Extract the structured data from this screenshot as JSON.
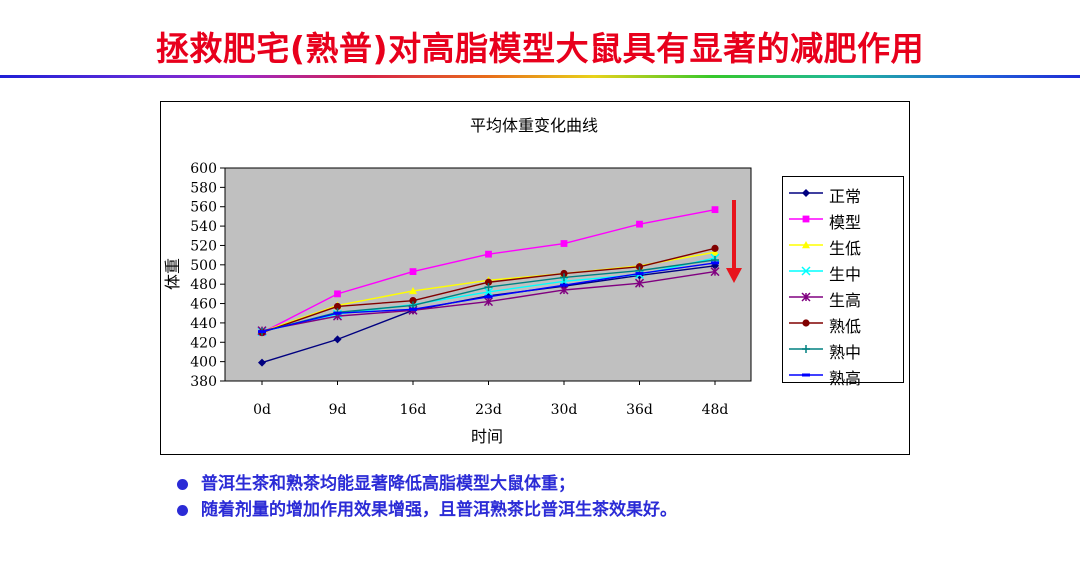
{
  "slide": {
    "title": "拯救肥宅(熟普)对高脂模型大鼠具有显著的减肥作用",
    "bullets": [
      "普洱生茶和熟茶均能显著降低高脂模型大鼠体重；",
      "随着剂量的增加作用效果增强，且普洱熟茶比普洱生茶效果好。"
    ]
  },
  "chart_data": {
    "type": "line",
    "title": "平均体重变化曲线",
    "xlabel": "时间",
    "ylabel": "体重",
    "categories": [
      "0d",
      "9d",
      "16d",
      "23d",
      "30d",
      "36d",
      "48d"
    ],
    "ylim": [
      380,
      600
    ],
    "yticks": [
      380,
      400,
      420,
      440,
      460,
      480,
      500,
      520,
      540,
      560,
      580,
      600
    ],
    "plot_background": "#c0c0c0",
    "grid": false,
    "legend_position": "right",
    "trend_arrow_color": "#e8141c",
    "series": [
      {
        "name": "正常",
        "color": "#000080",
        "marker": "diamond",
        "values": [
          399,
          423,
          453,
          468,
          478,
          489,
          499
        ]
      },
      {
        "name": "模型",
        "color": "#ff00ff",
        "marker": "square",
        "values": [
          430,
          470,
          493,
          511,
          522,
          542,
          557
        ]
      },
      {
        "name": "生低",
        "color": "#ffff00",
        "marker": "triangle",
        "values": [
          431,
          458,
          473,
          484,
          491,
          499,
          513
        ]
      },
      {
        "name": "生中",
        "color": "#00ffff",
        "marker": "x",
        "values": [
          431,
          449,
          459,
          472,
          483,
          490,
          507
        ]
      },
      {
        "name": "生高",
        "color": "#800080",
        "marker": "star",
        "values": [
          432,
          447,
          453,
          462,
          474,
          481,
          493
        ]
      },
      {
        "name": "熟低",
        "color": "#800000",
        "marker": "circle",
        "values": [
          430,
          457,
          463,
          482,
          491,
          498,
          517
        ]
      },
      {
        "name": "熟中",
        "color": "#008080",
        "marker": "plus",
        "values": [
          431,
          451,
          458,
          477,
          487,
          494,
          505
        ]
      },
      {
        "name": "熟高",
        "color": "#0000ff",
        "marker": "dash",
        "values": [
          431,
          450,
          454,
          467,
          479,
          491,
          502
        ]
      }
    ]
  }
}
